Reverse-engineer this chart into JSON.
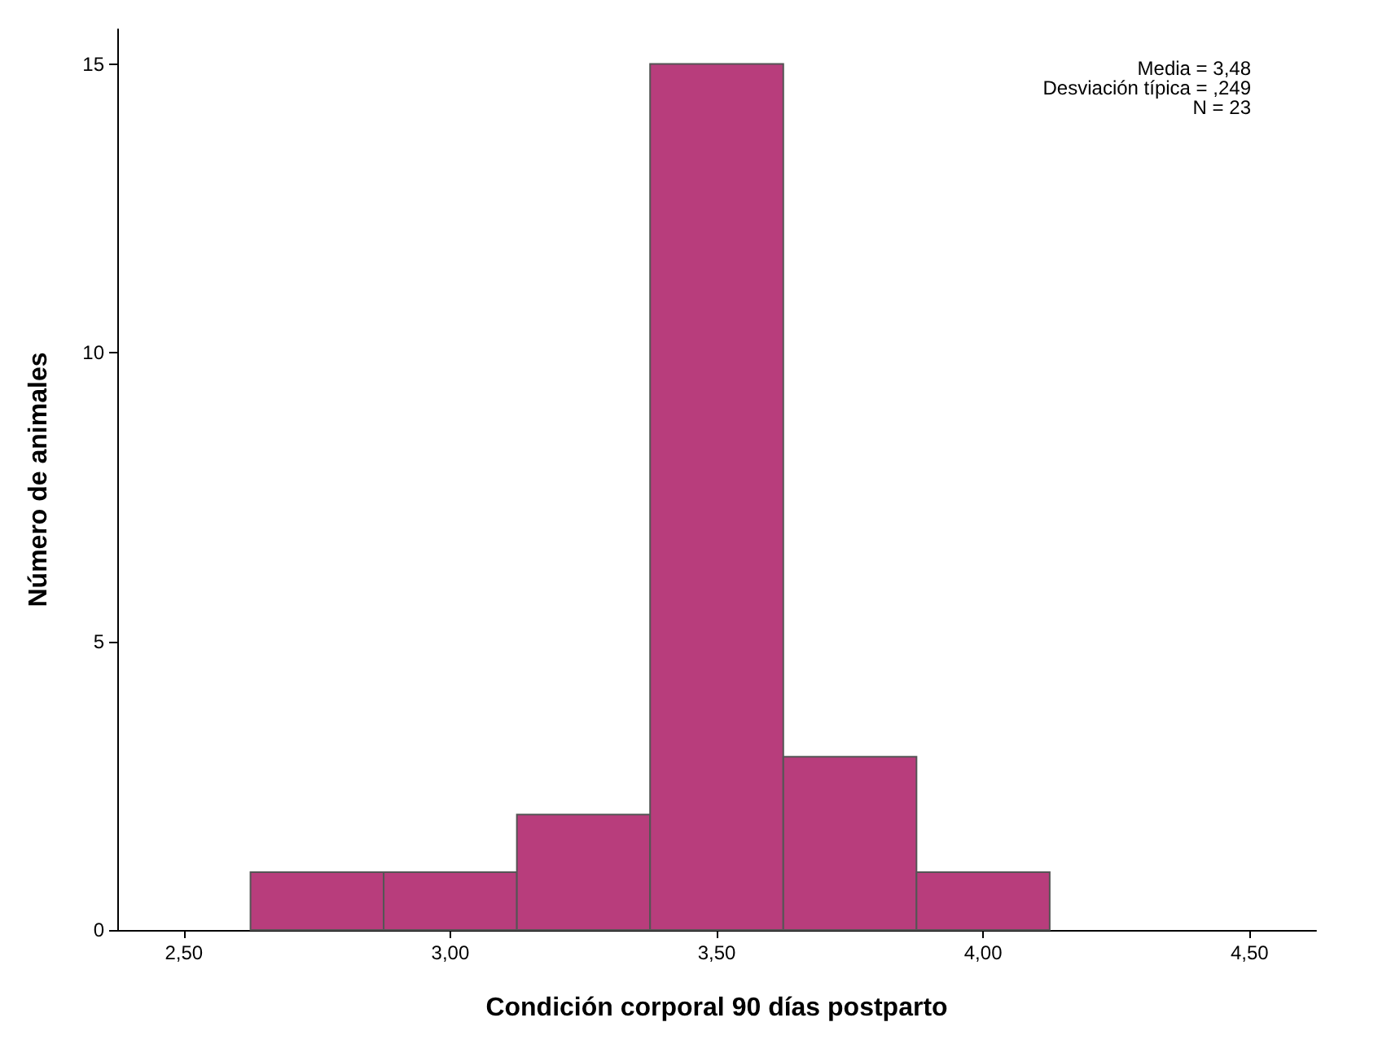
{
  "chart_data": {
    "type": "histogram",
    "xlabel": "Condición corporal 90 días postparto",
    "ylabel": "Número de animales",
    "bins": [
      2.625,
      2.875,
      3.125,
      3.375,
      3.625,
      3.875,
      4.125
    ],
    "values": [
      1,
      1,
      2,
      15,
      3,
      1
    ],
    "color": "#b83d7c",
    "xlim": [
      2.375,
      4.625
    ],
    "xticks": [
      {
        "value": 2.5,
        "label": "2,50"
      },
      {
        "value": 3,
        "label": "3,00"
      },
      {
        "value": 3.5,
        "label": "3,50"
      },
      {
        "value": 4,
        "label": "4,00"
      },
      {
        "value": 4.5,
        "label": "4,50"
      }
    ],
    "ylim": [
      0,
      15.6
    ],
    "yticks": [
      0,
      5,
      10,
      15
    ],
    "annotations": [
      "Media = 3,48",
      "Desviación típica = ,249",
      "N = 23"
    ],
    "grid": false
  }
}
